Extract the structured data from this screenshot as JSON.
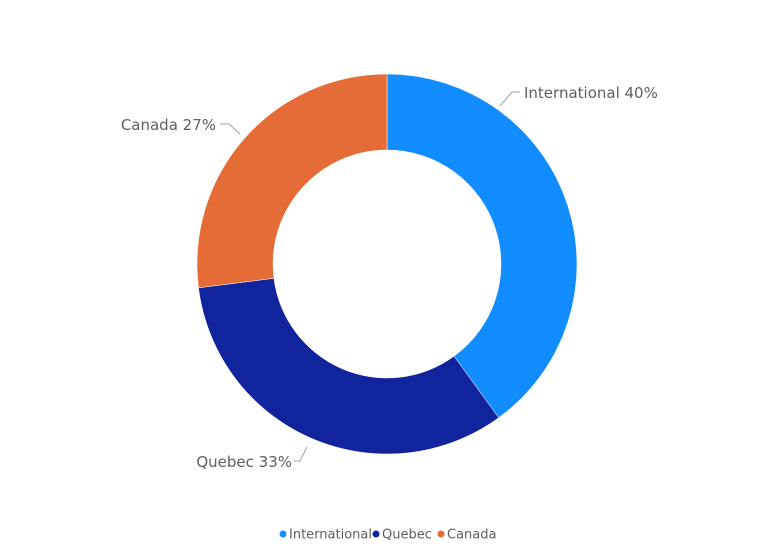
{
  "chart_data": {
    "type": "pie",
    "variant": "donut",
    "title": "",
    "categories": [
      "International",
      "Quebec",
      "Canada"
    ],
    "values": [
      40,
      33,
      27
    ],
    "data_labels": [
      "International 40%",
      "Quebec 33%",
      "Canada 27%"
    ],
    "colors": [
      "#118dff",
      "#12239e",
      "#e66c37"
    ],
    "legend": {
      "position": "bottom-center",
      "items": [
        "International",
        "Quebec",
        "Canada"
      ]
    }
  }
}
